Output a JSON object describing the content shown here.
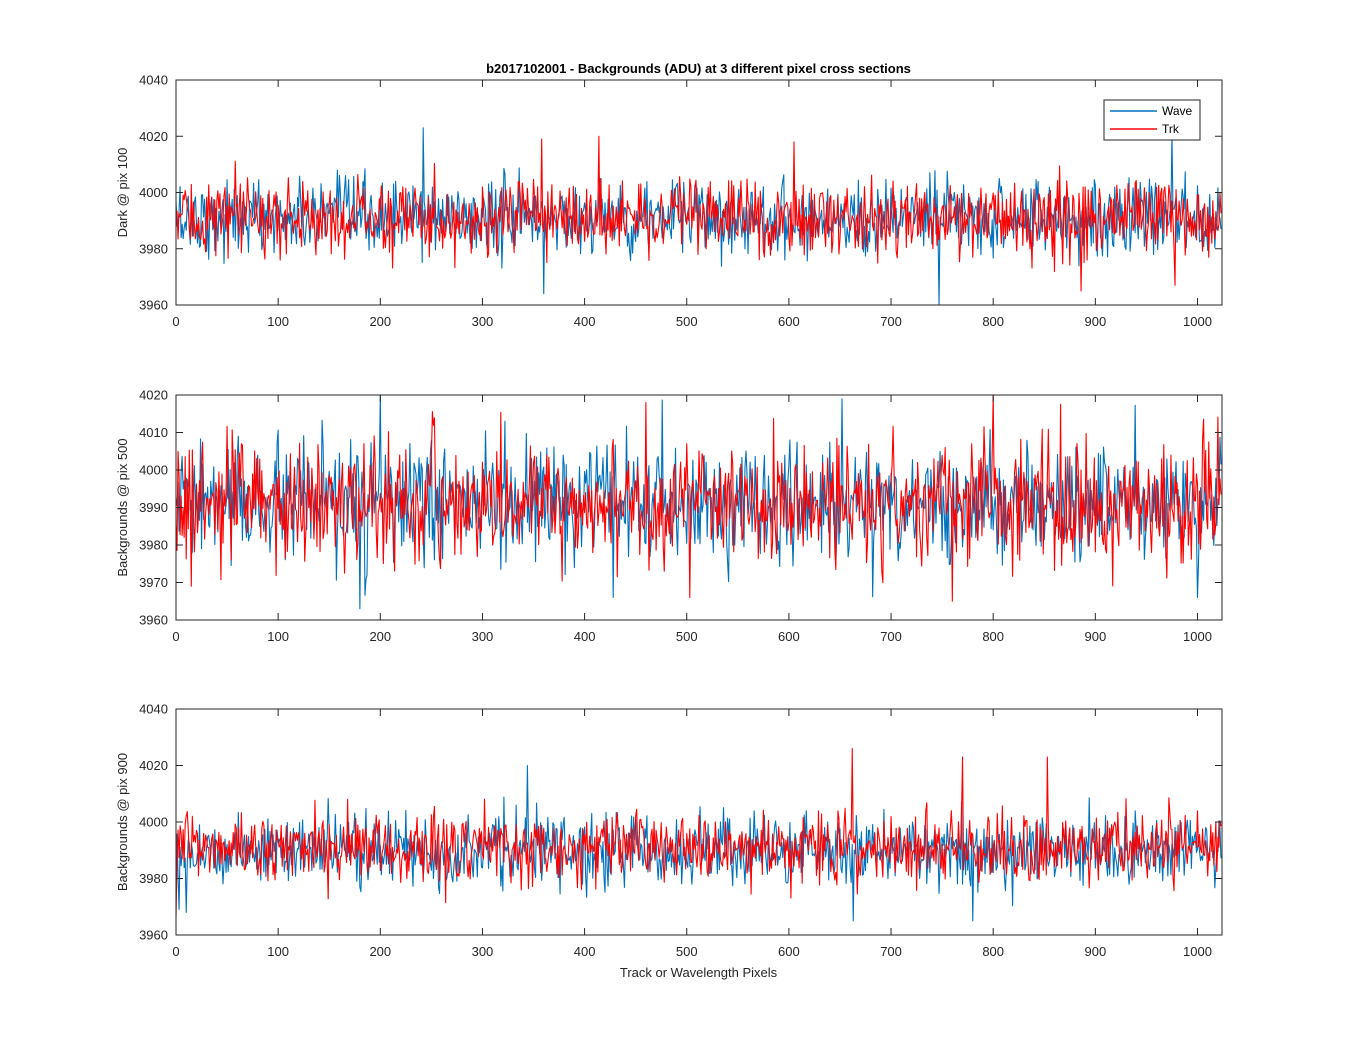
{
  "figure": {
    "title": "b2017102001 - Backgrounds (ADU) at 3 different pixel cross sections",
    "xlabel": "Track or Wavelength Pixels"
  },
  "legend": {
    "placement": "top-right",
    "entries": [
      {
        "name": "Wave",
        "color": "#0072BD"
      },
      {
        "name": "Trk",
        "color": "#FF0000"
      }
    ]
  },
  "chart_data": [
    {
      "type": "line",
      "title": "b2017102001 - Backgrounds (ADU) at 3 different pixel cross sections",
      "xlabel": "",
      "ylabel": "Dark @ pix 100",
      "xlim": [
        0,
        1024
      ],
      "ylim": [
        3960,
        4040
      ],
      "xticks": [
        0,
        100,
        200,
        300,
        400,
        500,
        600,
        700,
        800,
        900,
        1000
      ],
      "yticks": [
        3960,
        3980,
        4000,
        4020,
        4040
      ],
      "grid": false,
      "legend": "top-right",
      "series": [
        {
          "name": "Wave",
          "color": "#0072BD",
          "n_points": 1024,
          "mean": 3991,
          "std": 6.5,
          "min": 3960,
          "max": 4023,
          "peaks": [
            [
              242,
              4023
            ],
            [
              975,
              4021
            ],
            [
              747,
              3960
            ],
            [
              360,
              3964
            ]
          ]
        },
        {
          "name": "Trk",
          "color": "#FF0000",
          "n_points": 1024,
          "mean": 3991,
          "std": 6.5,
          "min": 3965,
          "max": 4020,
          "peaks": [
            [
              414,
              4020
            ],
            [
              358,
              4019
            ],
            [
              605,
              4018
            ],
            [
              886,
              3965
            ],
            [
              978,
              3967
            ]
          ]
        }
      ]
    },
    {
      "type": "line",
      "title": "",
      "xlabel": "",
      "ylabel": "Backgrounds @ pix 500",
      "xlim": [
        0,
        1024
      ],
      "ylim": [
        3960,
        4020
      ],
      "xticks": [
        0,
        100,
        200,
        300,
        400,
        500,
        600,
        700,
        800,
        900,
        1000
      ],
      "yticks": [
        3960,
        3970,
        3980,
        3990,
        4000,
        4010,
        4020
      ],
      "grid": false,
      "series": [
        {
          "name": "Wave",
          "color": "#0072BD",
          "n_points": 1024,
          "mean": 3991,
          "std": 7.5,
          "min": 3963,
          "max": 4020,
          "peaks": [
            [
              200,
              4020
            ],
            [
              652,
              4019
            ],
            [
              180,
              3963
            ],
            [
              1000,
              3966
            ],
            [
              428,
              3966
            ]
          ]
        },
        {
          "name": "Trk",
          "color": "#FF0000",
          "n_points": 1024,
          "mean": 3991,
          "std": 7.5,
          "min": 3965,
          "max": 4020,
          "peaks": [
            [
              800,
              4020
            ],
            [
              460,
              4018
            ],
            [
              760,
              3965
            ],
            [
              503,
              3966
            ],
            [
              15,
              3969
            ]
          ]
        }
      ]
    },
    {
      "type": "line",
      "title": "",
      "xlabel": "Track or Wavelength Pixels",
      "ylabel": "Backgrounds @ pix 900",
      "xlim": [
        0,
        1024
      ],
      "ylim": [
        3960,
        4040
      ],
      "xticks": [
        0,
        100,
        200,
        300,
        400,
        500,
        600,
        700,
        800,
        900,
        1000
      ],
      "yticks": [
        3960,
        3980,
        4000,
        4020,
        4040
      ],
      "grid": false,
      "series": [
        {
          "name": "Wave",
          "color": "#0072BD",
          "n_points": 1024,
          "mean": 3990,
          "std": 6.0,
          "min": 3965,
          "max": 4020,
          "peaks": [
            [
              344,
              4020
            ],
            [
              663,
              3965
            ],
            [
              780,
              3965
            ],
            [
              10,
              3968
            ]
          ]
        },
        {
          "name": "Trk",
          "color": "#FF0000",
          "n_points": 1024,
          "mean": 3991,
          "std": 6.0,
          "min": 3966,
          "max": 4026,
          "peaks": [
            [
              662,
              4026
            ],
            [
              770,
              4023
            ],
            [
              853,
              4023
            ],
            [
              0,
              3966
            ]
          ]
        }
      ]
    }
  ]
}
